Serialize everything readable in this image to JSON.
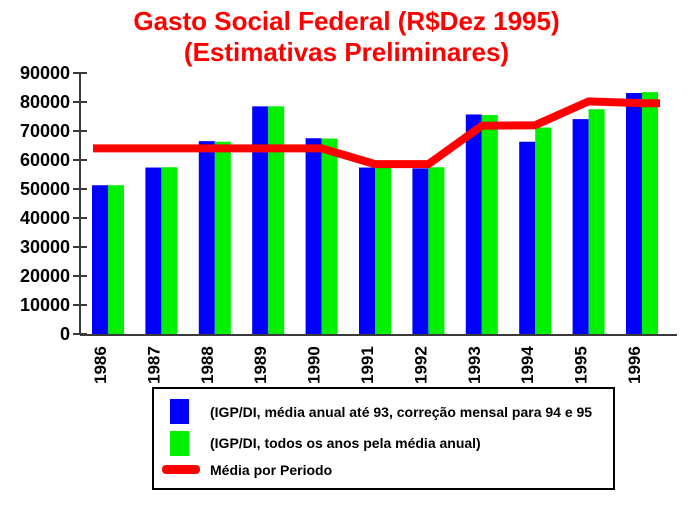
{
  "title": {
    "line1": "Gasto Social Federal (R$Dez 1995)",
    "line2": "(Estimativas Preliminares)"
  },
  "colors": {
    "title": "#FF0000",
    "series1_blue": "#0000FF",
    "series2_green": "#00F000",
    "media_line_red": "#FF0000",
    "axis": "#3a3a3a",
    "text": "#000000"
  },
  "legend": {
    "items": [
      {
        "swatch": "square",
        "color": "#0000FF",
        "label": "(IGP/DI, média anual até 93, correção mensal para 94 e 95"
      },
      {
        "swatch": "square",
        "color": "#00F000",
        "label": "(IGP/DI, todos os anos pela média anual)"
      },
      {
        "swatch": "line",
        "color": "#FF0000",
        "label": "Média por Periodo"
      }
    ]
  },
  "chart_data": {
    "type": "bar",
    "title": "Gasto Social Federal (R$Dez 1995) (Estimativas Preliminares)",
    "categories": [
      "1986",
      "1987",
      "1988",
      "1989",
      "1990",
      "1991",
      "1992",
      "1993",
      "1994",
      "1995",
      "1996"
    ],
    "series": [
      {
        "name": "(IGP/DI, média anual até 93, correção mensal para 94 e 95",
        "type": "bar",
        "color": "#0000FF",
        "values": [
          51300,
          57400,
          66500,
          78500,
          67500,
          57400,
          57100,
          75700,
          66300,
          74100,
          83100
        ]
      },
      {
        "name": "(IGP/DI, todos os anos pela média anual)",
        "type": "bar",
        "color": "#00F000",
        "values": [
          51300,
          57500,
          66300,
          78500,
          67400,
          57300,
          57500,
          75500,
          71200,
          77500,
          83400
        ]
      },
      {
        "name": "Média por Periodo",
        "type": "line",
        "color": "#FF0000",
        "values": [
          64000,
          64000,
          64000,
          64000,
          64000,
          58600,
          58600,
          71800,
          72000,
          80200,
          79600
        ]
      }
    ],
    "xlabel": "",
    "ylabel": "",
    "ylim": [
      0,
      90000
    ],
    "ytick_interval": 10000,
    "grid": false,
    "legend_position": "bottom",
    "x_tick_label_rotation": -90
  }
}
